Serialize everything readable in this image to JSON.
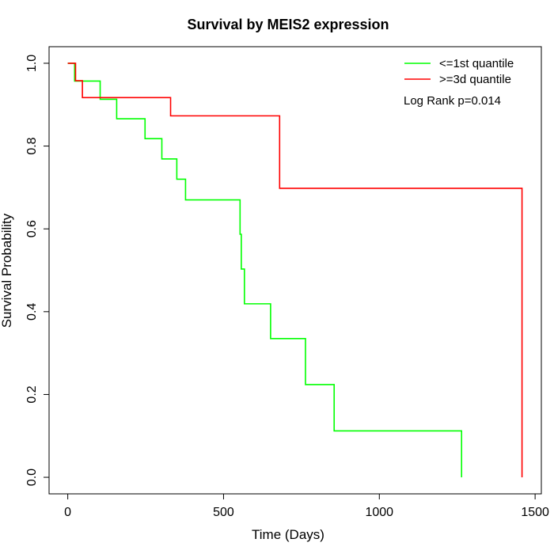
{
  "chart_data": {
    "type": "line",
    "title": "Survival by MEIS2 expression",
    "xlabel": "Time (Days)",
    "ylabel": "Survival Probability",
    "xlim": [
      -60,
      1520
    ],
    "ylim": [
      -0.04,
      1.04
    ],
    "x_ticks": [
      0,
      500,
      1000,
      1500
    ],
    "x_tick_labels": [
      "0",
      "500",
      "1000",
      "1500"
    ],
    "y_ticks": [
      0.0,
      0.2,
      0.4,
      0.6,
      0.8,
      1.0
    ],
    "y_tick_labels": [
      "0.0",
      "0.2",
      "0.4",
      "0.6",
      "0.8",
      "1.0"
    ],
    "grid": false,
    "legend_position": "top-right",
    "annotation": "Log Rank p=0.014",
    "series": [
      {
        "name": "<=1st quantile",
        "color": "#00ff00",
        "step_points": [
          [
            0,
            1.0
          ],
          [
            22,
            1.0
          ],
          [
            22,
            0.957
          ],
          [
            104,
            0.957
          ],
          [
            104,
            0.913
          ],
          [
            157,
            0.913
          ],
          [
            157,
            0.866
          ],
          [
            248,
            0.866
          ],
          [
            248,
            0.818
          ],
          [
            302,
            0.818
          ],
          [
            302,
            0.769
          ],
          [
            350,
            0.769
          ],
          [
            350,
            0.72
          ],
          [
            378,
            0.72
          ],
          [
            378,
            0.67
          ],
          [
            553,
            0.67
          ],
          [
            553,
            0.587
          ],
          [
            557,
            0.587
          ],
          [
            557,
            0.503
          ],
          [
            567,
            0.503
          ],
          [
            567,
            0.419
          ],
          [
            651,
            0.419
          ],
          [
            651,
            0.335
          ],
          [
            763,
            0.335
          ],
          [
            763,
            0.224
          ],
          [
            855,
            0.224
          ],
          [
            855,
            0.112
          ],
          [
            1264,
            0.112
          ],
          [
            1264,
            0.0
          ]
        ]
      },
      {
        "name": ">=3d quantile",
        "color": "#ff0000",
        "step_points": [
          [
            0,
            1.0
          ],
          [
            25,
            1.0
          ],
          [
            25,
            0.958
          ],
          [
            47,
            0.958
          ],
          [
            47,
            0.917
          ],
          [
            330,
            0.917
          ],
          [
            330,
            0.873
          ],
          [
            680,
            0.873
          ],
          [
            680,
            0.698
          ],
          [
            1458,
            0.698
          ],
          [
            1458,
            0.0
          ]
        ]
      }
    ]
  }
}
